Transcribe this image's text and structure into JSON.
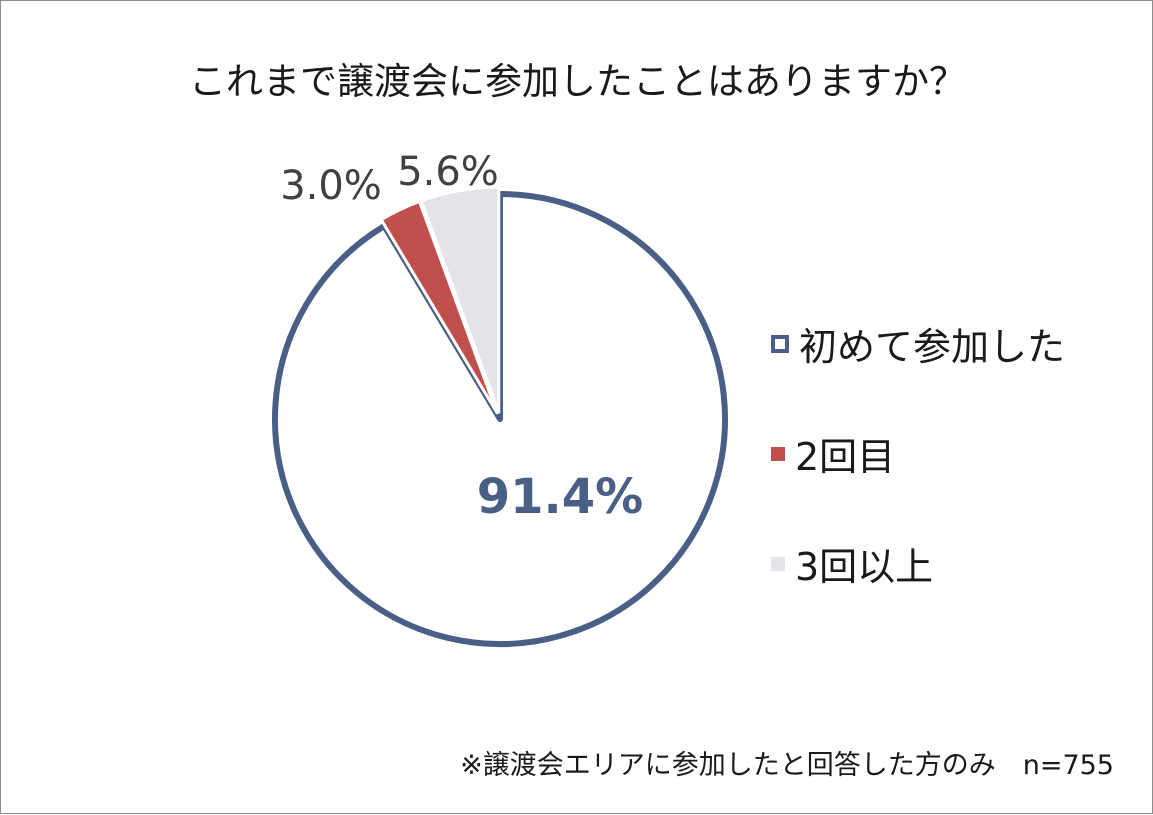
{
  "chart_data": {
    "type": "pie",
    "title": "これまで譲渡会に参加したことはありますか？",
    "slices": [
      {
        "label": "初めて参加した",
        "value": 91.4,
        "value_label": "91.4%",
        "color": "#4a5f86",
        "fill": "#ffffff"
      },
      {
        "label": "2回目",
        "value": 3.0,
        "value_label": "3.0%",
        "color": "#c0504d",
        "fill": "#c0504d"
      },
      {
        "label": "3回以上",
        "value": 5.6,
        "value_label": "5.6%",
        "color": "#e6e3e8",
        "fill": "#e6e3e8"
      }
    ],
    "legend_position": "right"
  },
  "footnote": "※譲渡会エリアに参加したと回答した方のみ　n=755"
}
